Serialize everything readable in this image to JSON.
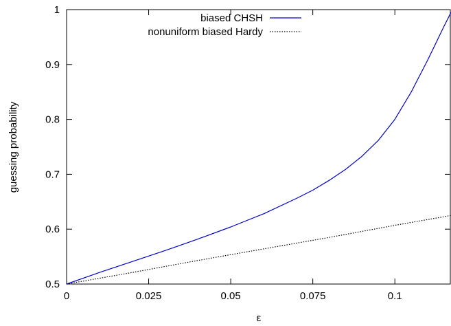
{
  "chart_data": {
    "type": "line",
    "title": "",
    "xlabel": "ε",
    "ylabel": "guessing probability",
    "xlim": [
      0,
      0.1171
    ],
    "ylim": [
      0.5,
      1
    ],
    "x_ticks": [
      0,
      0.025,
      0.05,
      0.075,
      0.1
    ],
    "x_tick_labels": [
      "0",
      "0.025",
      "0.05",
      "0.075",
      "0.1"
    ],
    "y_ticks": [
      0.5,
      0.6,
      0.7,
      0.8,
      0.9,
      1
    ],
    "y_tick_labels": [
      "0.5",
      "0.6",
      "0.7",
      "0.8",
      "0.9",
      "1"
    ],
    "grid": false,
    "legend": "top-right",
    "series": [
      {
        "name": "biased CHSH",
        "color": "#0000cc",
        "style": "solid",
        "x": [
          0,
          0.01,
          0.02,
          0.03,
          0.04,
          0.05,
          0.06,
          0.07,
          0.075,
          0.08,
          0.085,
          0.09,
          0.095,
          0.1,
          0.105,
          0.11,
          0.115,
          0.1171
        ],
        "y": [
          0.5,
          0.521,
          0.541,
          0.561,
          0.582,
          0.604,
          0.628,
          0.656,
          0.671,
          0.689,
          0.709,
          0.733,
          0.762,
          0.8,
          0.85,
          0.908,
          0.97,
          0.995
        ]
      },
      {
        "name": "nonuniform biased Hardy",
        "color": "#000000",
        "style": "dotted",
        "x": [
          0,
          0.02,
          0.04,
          0.06,
          0.08,
          0.1,
          0.1171
        ],
        "y": [
          0.5,
          0.521,
          0.543,
          0.564,
          0.585,
          0.607,
          0.625
        ]
      }
    ]
  }
}
